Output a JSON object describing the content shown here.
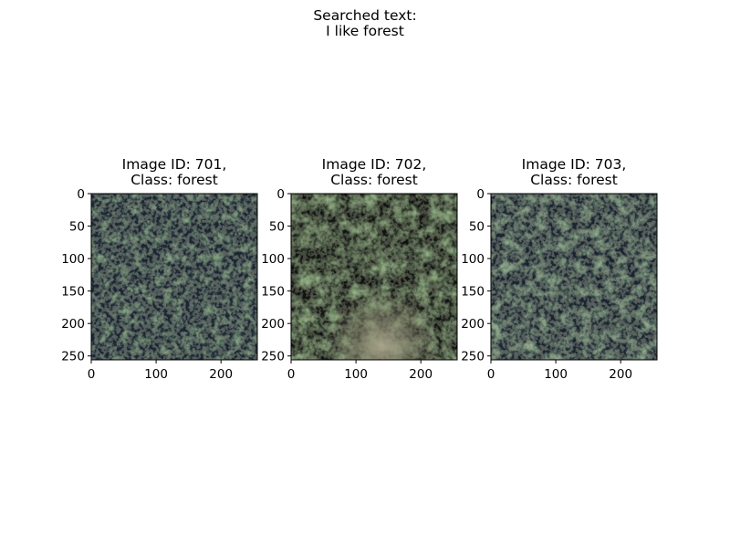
{
  "figure": {
    "title_line1": "Searched text:",
    "title_line2": "I like forest"
  },
  "panels": [
    {
      "title_line1": "Image ID: 701,",
      "title_line2": "Class: forest",
      "image": "aerial forest canopy, dark with scattered green tree crowns",
      "colors": [
        "#1b2633",
        "#2f4a2c",
        "#6f7f52"
      ]
    },
    {
      "title_line1": "Image ID: 702,",
      "title_line2": "Class: forest",
      "image": "aerial forest canopy, dense tree crowns with a pale clearing at the bottom",
      "colors": [
        "#0f120f",
        "#3a5a2c",
        "#a8a48a"
      ]
    },
    {
      "title_line1": "Image ID: 703,",
      "title_line2": "Class: forest",
      "image": "aerial forest canopy, patchy green tree crowns over dark ground",
      "colors": [
        "#1a2430",
        "#355333",
        "#6c8a5c"
      ]
    }
  ],
  "axes": {
    "x_ticks": [
      "0",
      "100",
      "200"
    ],
    "y_ticks": [
      "0",
      "50",
      "100",
      "150",
      "200",
      "250"
    ],
    "extent": [
      0,
      256
    ]
  }
}
